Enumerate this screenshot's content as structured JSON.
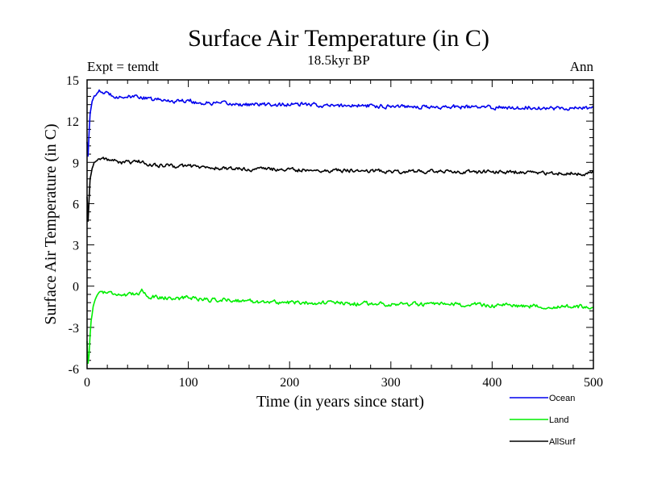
{
  "chart_data": {
    "type": "line",
    "title": "Surface Air Temperature (in C)",
    "subtitle": "18.5kyr BP",
    "left_label": "Expt = temdt",
    "right_label": "Ann",
    "xlabel": "Time (in years since start)",
    "ylabel": "Surface Air Temperature (in C)",
    "xlim": [
      0,
      500
    ],
    "ylim": [
      -6,
      15
    ],
    "xticks": [
      0,
      100,
      200,
      300,
      400,
      500
    ],
    "yticks": [
      -6,
      -3,
      0,
      3,
      6,
      9,
      12,
      15
    ],
    "legend_position": "bottom-right",
    "series": [
      {
        "name": "Ocean",
        "color": "#0000ee",
        "x": [
          0,
          1,
          2,
          3,
          5,
          7,
          10,
          13,
          15,
          20,
          25,
          30,
          35,
          40,
          45,
          50,
          55,
          60,
          70,
          80,
          90,
          100,
          110,
          120,
          140,
          160,
          180,
          200,
          220,
          240,
          260,
          280,
          300,
          320,
          340,
          360,
          380,
          400,
          420,
          440,
          460,
          480,
          500
        ],
        "values": [
          10.5,
          9.5,
          11.2,
          12.6,
          13.4,
          13.8,
          14.0,
          14.15,
          14.1,
          14.0,
          13.9,
          13.8,
          13.75,
          13.8,
          13.7,
          13.85,
          13.7,
          13.6,
          13.55,
          13.5,
          13.45,
          13.55,
          13.3,
          13.3,
          13.25,
          13.2,
          13.2,
          13.2,
          13.2,
          13.1,
          13.15,
          13.1,
          13.1,
          13.1,
          13.0,
          13.05,
          13.0,
          13.0,
          13.0,
          13.0,
          12.95,
          12.95,
          12.95
        ],
        "noise": 0.13
      },
      {
        "name": "Land",
        "color": "#00ee00",
        "x": [
          0,
          1,
          2,
          3,
          4,
          6,
          8,
          10,
          13,
          15,
          20,
          25,
          30,
          40,
          50,
          55,
          60,
          70,
          80,
          90,
          100,
          120,
          140,
          160,
          180,
          200,
          220,
          240,
          260,
          280,
          300,
          320,
          340,
          360,
          380,
          400,
          420,
          440,
          460,
          480,
          500
        ],
        "values": [
          -4.0,
          -5.6,
          -5.0,
          -3.5,
          -2.5,
          -1.5,
          -1.0,
          -0.6,
          -0.45,
          -0.4,
          -0.45,
          -0.5,
          -0.55,
          -0.7,
          -0.5,
          -0.3,
          -0.75,
          -0.8,
          -0.85,
          -0.9,
          -0.8,
          -1.0,
          -1.0,
          -1.1,
          -1.15,
          -1.2,
          -1.2,
          -1.2,
          -1.3,
          -1.25,
          -1.3,
          -1.3,
          -1.35,
          -1.35,
          -1.35,
          -1.4,
          -1.4,
          -1.45,
          -1.5,
          -1.5,
          -1.5
        ],
        "noise": 0.13
      },
      {
        "name": "AllSurf",
        "color": "#000000",
        "x": [
          0,
          1,
          2,
          3,
          5,
          7,
          10,
          13,
          15,
          20,
          25,
          30,
          35,
          40,
          45,
          50,
          55,
          60,
          70,
          80,
          90,
          100,
          120,
          140,
          160,
          180,
          200,
          220,
          240,
          260,
          280,
          300,
          320,
          340,
          360,
          380,
          400,
          420,
          440,
          460,
          480,
          500
        ],
        "values": [
          6.5,
          4.7,
          6.3,
          7.8,
          8.6,
          9.0,
          9.2,
          9.3,
          9.3,
          9.2,
          9.15,
          9.05,
          9.0,
          9.0,
          8.95,
          9.1,
          9.0,
          8.85,
          8.8,
          8.75,
          8.7,
          8.75,
          8.6,
          8.55,
          8.5,
          8.5,
          8.45,
          8.45,
          8.4,
          8.4,
          8.4,
          8.35,
          8.35,
          8.35,
          8.3,
          8.3,
          8.3,
          8.3,
          8.25,
          8.2,
          8.2,
          8.2
        ],
        "noise": 0.12
      }
    ]
  }
}
